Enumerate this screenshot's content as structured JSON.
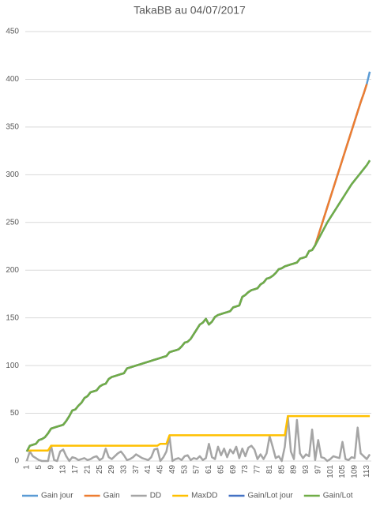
{
  "chart_data": {
    "type": "line",
    "title": "TakaBB au 04/07/2017",
    "categories": [
      "1",
      null,
      null,
      null,
      "5",
      null,
      null,
      null,
      "9",
      null,
      null,
      null,
      "13",
      null,
      null,
      null,
      "17",
      null,
      null,
      null,
      "21",
      null,
      null,
      null,
      "25",
      null,
      null,
      null,
      "29",
      null,
      null,
      null,
      "33",
      null,
      null,
      null,
      "37",
      null,
      null,
      null,
      "41",
      null,
      null,
      null,
      "45",
      null,
      null,
      null,
      "49",
      null,
      null,
      null,
      "53",
      null,
      null,
      null,
      "57",
      null,
      null,
      null,
      "61",
      null,
      null,
      null,
      "65",
      null,
      null,
      null,
      "69",
      null,
      null,
      null,
      "73",
      null,
      null,
      null,
      "77",
      null,
      null,
      null,
      "81",
      null,
      null,
      null,
      "85",
      null,
      null,
      null,
      "89",
      null,
      null,
      null,
      "93",
      null,
      null,
      null,
      "97",
      null,
      null,
      null,
      "101",
      null,
      null,
      null,
      "105",
      null,
      null,
      null,
      "109",
      null,
      null,
      null,
      "113",
      null
    ],
    "ylim": [
      0,
      450
    ],
    "yticks": [
      0,
      50,
      100,
      150,
      200,
      250,
      300,
      350,
      400,
      450
    ],
    "grid": true,
    "legend": "bottom",
    "series": [
      {
        "name": "Gain jour",
        "color": "#5b9bd5",
        "values": [
          10,
          16,
          17,
          18,
          22,
          23,
          25,
          29,
          34,
          35,
          36,
          37,
          38,
          42,
          47,
          53,
          54,
          58,
          61,
          66,
          68,
          72,
          73,
          74,
          78,
          80,
          81,
          86,
          88,
          89,
          90,
          91,
          92,
          97,
          98,
          99,
          100,
          101,
          102,
          103,
          104,
          105,
          106,
          107,
          108,
          109,
          110,
          114,
          115,
          116,
          117,
          120,
          124,
          125,
          128,
          133,
          138,
          143,
          145,
          149,
          143,
          146,
          151,
          153,
          154,
          155,
          156,
          157,
          161,
          162,
          163,
          172,
          174,
          177,
          179,
          180,
          181,
          185,
          187,
          191,
          192,
          194,
          197,
          201,
          202,
          204,
          205,
          206,
          207,
          208,
          212,
          213,
          214,
          220,
          221,
          226,
          236,
          246,
          256,
          266,
          276,
          286,
          296,
          306,
          316,
          326,
          336,
          346,
          356,
          366,
          376,
          385,
          395,
          408
        ]
      },
      {
        "name": "Gain",
        "color": "#ed7d31",
        "values": [
          10,
          16,
          17,
          18,
          22,
          23,
          25,
          29,
          34,
          35,
          36,
          37,
          38,
          42,
          47,
          53,
          54,
          58,
          61,
          66,
          68,
          72,
          73,
          74,
          78,
          80,
          81,
          86,
          88,
          89,
          90,
          91,
          92,
          97,
          98,
          99,
          100,
          101,
          102,
          103,
          104,
          105,
          106,
          107,
          108,
          109,
          110,
          114,
          115,
          116,
          117,
          120,
          124,
          125,
          128,
          133,
          138,
          143,
          145,
          149,
          143,
          146,
          151,
          153,
          154,
          155,
          156,
          157,
          161,
          162,
          163,
          172,
          174,
          177,
          179,
          180,
          181,
          185,
          187,
          191,
          192,
          194,
          197,
          201,
          202,
          204,
          205,
          206,
          207,
          208,
          212,
          213,
          214,
          220,
          221,
          226,
          236,
          246,
          256,
          266,
          276,
          286,
          296,
          306,
          316,
          326,
          336,
          346,
          356,
          366,
          376,
          385,
          395,
          null
        ]
      },
      {
        "name": "DD",
        "color": "#a5a5a5",
        "values": [
          0,
          10,
          5,
          3,
          1,
          0,
          0,
          0,
          16,
          1,
          0,
          10,
          12,
          5,
          0,
          4,
          3,
          1,
          2,
          3,
          1,
          2,
          4,
          5,
          1,
          3,
          13,
          4,
          2,
          5,
          8,
          10,
          6,
          1,
          2,
          4,
          7,
          5,
          3,
          2,
          1,
          4,
          12,
          13,
          0,
          4,
          10,
          26,
          0,
          2,
          3,
          1,
          5,
          6,
          1,
          3,
          2,
          5,
          1,
          3,
          18,
          4,
          2,
          15,
          6,
          13,
          4,
          12,
          8,
          15,
          3,
          13,
          5,
          14,
          16,
          12,
          2,
          7,
          2,
          8,
          26,
          15,
          3,
          5,
          0,
          15,
          47,
          10,
          2,
          43,
          8,
          3,
          7,
          5,
          33,
          1,
          22,
          4,
          3,
          0,
          2,
          5,
          4,
          3,
          20,
          2,
          1,
          4,
          3,
          35,
          8,
          5,
          2,
          7
        ]
      },
      {
        "name": "MaxDD",
        "color": "#ffc000",
        "values": [
          11,
          11,
          11,
          11,
          11,
          11,
          11,
          11,
          16,
          16,
          16,
          16,
          16,
          16,
          16,
          16,
          16,
          16,
          16,
          16,
          16,
          16,
          16,
          16,
          16,
          16,
          16,
          16,
          16,
          16,
          16,
          16,
          16,
          16,
          16,
          16,
          16,
          16,
          16,
          16,
          16,
          16,
          16,
          16,
          18,
          18,
          18,
          27,
          27,
          27,
          27,
          27,
          27,
          27,
          27,
          27,
          27,
          27,
          27,
          27,
          27,
          27,
          27,
          27,
          27,
          27,
          27,
          27,
          27,
          27,
          27,
          27,
          27,
          27,
          27,
          27,
          27,
          27,
          27,
          27,
          27,
          27,
          27,
          27,
          27,
          27,
          47,
          47,
          47,
          47,
          47,
          47,
          47,
          47,
          47,
          47,
          47,
          47,
          47,
          47,
          47,
          47,
          47,
          47,
          47,
          47,
          47,
          47,
          47,
          47,
          47,
          47,
          47,
          47
        ]
      },
      {
        "name": "Gain/Lot jour",
        "color": "#4472c4",
        "values": [
          10,
          16,
          17,
          18,
          22,
          23,
          25,
          29,
          34,
          35,
          36,
          37,
          38,
          42,
          47,
          53,
          54,
          58,
          61,
          66,
          68,
          72,
          73,
          74,
          78,
          80,
          81,
          86,
          88,
          89,
          90,
          91,
          92,
          97,
          98,
          99,
          100,
          101,
          102,
          103,
          104,
          105,
          106,
          107,
          108,
          109,
          110,
          114,
          115,
          116,
          117,
          120,
          124,
          125,
          128,
          133,
          138,
          143,
          145,
          149,
          143,
          146,
          151,
          153,
          154,
          155,
          156,
          157,
          161,
          162,
          163,
          172,
          174,
          177,
          179,
          180,
          181,
          185,
          187,
          191,
          192,
          194,
          197,
          201,
          202,
          204,
          205,
          206,
          207,
          208,
          212,
          213,
          214,
          220,
          221,
          226,
          232,
          238,
          244,
          250,
          255,
          260,
          265,
          270,
          275,
          280,
          285,
          290,
          294,
          298,
          302,
          306,
          310,
          315
        ]
      },
      {
        "name": "Gain/Lot",
        "color": "#70ad47",
        "values": [
          10,
          16,
          17,
          18,
          22,
          23,
          25,
          29,
          34,
          35,
          36,
          37,
          38,
          42,
          47,
          53,
          54,
          58,
          61,
          66,
          68,
          72,
          73,
          74,
          78,
          80,
          81,
          86,
          88,
          89,
          90,
          91,
          92,
          97,
          98,
          99,
          100,
          101,
          102,
          103,
          104,
          105,
          106,
          107,
          108,
          109,
          110,
          114,
          115,
          116,
          117,
          120,
          124,
          125,
          128,
          133,
          138,
          143,
          145,
          149,
          143,
          146,
          151,
          153,
          154,
          155,
          156,
          157,
          161,
          162,
          163,
          172,
          174,
          177,
          179,
          180,
          181,
          185,
          187,
          191,
          192,
          194,
          197,
          201,
          202,
          204,
          205,
          206,
          207,
          208,
          212,
          213,
          214,
          220,
          221,
          226,
          232,
          238,
          244,
          250,
          255,
          260,
          265,
          270,
          275,
          280,
          285,
          290,
          294,
          298,
          302,
          306,
          310,
          315
        ]
      }
    ]
  }
}
